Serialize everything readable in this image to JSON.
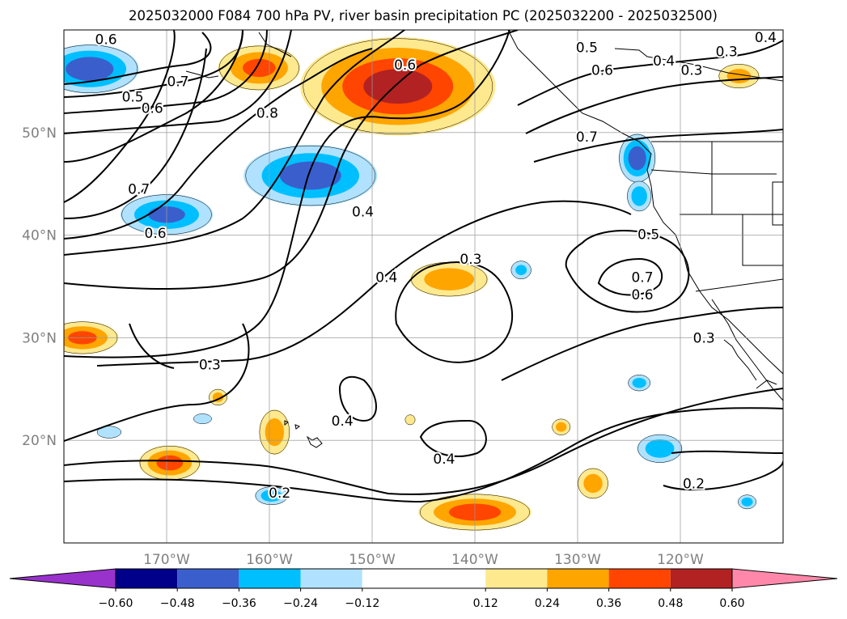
{
  "chart_data": {
    "type": "contour",
    "title": "2025032000 F084 700 hPa PV, river basin precipitation PC (2025032200 - 2025032500)",
    "xlabel": "",
    "ylabel": "",
    "xlim": [
      -180,
      -110
    ],
    "ylim": [
      10,
      60
    ],
    "grid": true,
    "lon_ticks": [
      -170,
      -160,
      -150,
      -140,
      -130,
      -120
    ],
    "lon_tick_labels": [
      "170°W",
      "160°W",
      "150°W",
      "140°W",
      "130°W",
      "120°W"
    ],
    "lat_ticks": [
      20,
      30,
      40,
      50
    ],
    "lat_tick_labels": [
      "20°N",
      "30°N",
      "40°N",
      "50°N"
    ],
    "colorbar": {
      "orientation": "horizontal",
      "extend": "both",
      "ticks": [
        -0.6,
        -0.48,
        -0.36,
        -0.24,
        -0.12,
        0.12,
        0.24,
        0.36,
        0.48,
        0.6
      ],
      "tick_labels": [
        "−0.60",
        "−0.48",
        "−0.36",
        "−0.24",
        "−0.12",
        "0.12",
        "0.24",
        "0.36",
        "0.48",
        "0.60"
      ],
      "colors": [
        "#9932cc",
        "#00008b",
        "#3a5fcd",
        "#00bfff",
        "#b0e2ff",
        "#ffffff",
        "#ffe98f",
        "#ffa500",
        "#ff4500",
        "#b22222",
        "#ff88aa"
      ]
    },
    "contour_levels": [
      0.2,
      0.3,
      0.4,
      0.5,
      0.6,
      0.7,
      0.8
    ],
    "contour_labels": [
      {
        "text": "0.6",
        "lon": -175.9,
        "lat": 59.1
      },
      {
        "text": "0.6",
        "lon": -146.8,
        "lat": 56.6
      },
      {
        "text": "0.5",
        "lon": -173.3,
        "lat": 53.5
      },
      {
        "text": "0.6",
        "lon": -171.4,
        "lat": 52.4
      },
      {
        "text": "0.7",
        "lon": -168.9,
        "lat": 55.0
      },
      {
        "text": "0.8",
        "lon": -160.2,
        "lat": 51.9
      },
      {
        "text": "0.7",
        "lon": -172.7,
        "lat": 44.5
      },
      {
        "text": "0.6",
        "lon": -171.1,
        "lat": 40.2
      },
      {
        "text": "0.4",
        "lon": -150.9,
        "lat": 42.3
      },
      {
        "text": "0.3",
        "lon": -140.4,
        "lat": 37.7
      },
      {
        "text": "0.4",
        "lon": -148.6,
        "lat": 35.9
      },
      {
        "text": "0.5",
        "lon": -129.1,
        "lat": 58.3
      },
      {
        "text": "0.6",
        "lon": -127.6,
        "lat": 56.1
      },
      {
        "text": "0.4",
        "lon": -121.6,
        "lat": 57.0
      },
      {
        "text": "0.3",
        "lon": -118.9,
        "lat": 56.1
      },
      {
        "text": "0.3",
        "lon": -115.5,
        "lat": 57.9
      },
      {
        "text": "0.4",
        "lon": -111.7,
        "lat": 59.3
      },
      {
        "text": "0.7",
        "lon": -129.1,
        "lat": 49.6
      },
      {
        "text": "0.5",
        "lon": -123.1,
        "lat": 40.1
      },
      {
        "text": "0.7",
        "lon": -123.7,
        "lat": 35.9
      },
      {
        "text": "0.6",
        "lon": -123.7,
        "lat": 34.2
      },
      {
        "text": "0.3",
        "lon": -117.7,
        "lat": 30.0
      },
      {
        "text": "0.3",
        "lon": -165.8,
        "lat": 27.4
      },
      {
        "text": "0.4",
        "lon": -152.9,
        "lat": 21.9
      },
      {
        "text": "0.4",
        "lon": -143.0,
        "lat": 18.2
      },
      {
        "text": "0.2",
        "lon": -159.0,
        "lat": 14.9
      },
      {
        "text": "0.2",
        "lon": -118.7,
        "lat": 15.8
      }
    ],
    "shaded_regions": [
      {
        "lon": -177.5,
        "lat": 56.2,
        "rx": 4.8,
        "ry": 2.4,
        "value": -0.42
      },
      {
        "lon": -161.0,
        "lat": 56.3,
        "rx": 4.0,
        "ry": 2.2,
        "value": 0.36
      },
      {
        "lon": -147.5,
        "lat": 54.5,
        "rx": 9.5,
        "ry": 4.8,
        "value": 0.5
      },
      {
        "lon": -156.0,
        "lat": 45.8,
        "rx": 6.5,
        "ry": 3.0,
        "value": -0.4
      },
      {
        "lon": -170.0,
        "lat": 42.0,
        "rx": 4.5,
        "ry": 2.0,
        "value": -0.36
      },
      {
        "lon": -178.2,
        "lat": 30.0,
        "rx": 3.5,
        "ry": 1.6,
        "value": 0.36
      },
      {
        "lon": -142.5,
        "lat": 35.7,
        "rx": 3.8,
        "ry": 1.7,
        "value": 0.3
      },
      {
        "lon": -135.5,
        "lat": 36.6,
        "rx": 1.0,
        "ry": 0.9,
        "value": -0.24
      },
      {
        "lon": -124.2,
        "lat": 47.5,
        "rx": 1.8,
        "ry": 2.4,
        "value": -0.42
      },
      {
        "lon": -124.0,
        "lat": 43.8,
        "rx": 1.2,
        "ry": 1.5,
        "value": -0.3
      },
      {
        "lon": -114.3,
        "lat": 55.5,
        "rx": 2.0,
        "ry": 1.2,
        "value": 0.26
      },
      {
        "lon": -165.0,
        "lat": 24.2,
        "rx": 0.9,
        "ry": 0.8,
        "value": 0.26
      },
      {
        "lon": -159.5,
        "lat": 20.8,
        "rx": 1.5,
        "ry": 2.2,
        "value": 0.28
      },
      {
        "lon": -169.7,
        "lat": 17.8,
        "rx": 3.0,
        "ry": 1.7,
        "value": 0.38
      },
      {
        "lon": -159.8,
        "lat": 14.6,
        "rx": 1.6,
        "ry": 0.9,
        "value": -0.3
      },
      {
        "lon": -175.6,
        "lat": 20.8,
        "rx": 1.2,
        "ry": 0.6,
        "value": -0.16
      },
      {
        "lon": -166.5,
        "lat": 22.1,
        "rx": 0.9,
        "ry": 0.5,
        "value": -0.16
      },
      {
        "lon": -140.0,
        "lat": 13.0,
        "rx": 5.5,
        "ry": 1.8,
        "value": 0.4
      },
      {
        "lon": -146.3,
        "lat": 22.0,
        "rx": 0.5,
        "ry": 0.5,
        "value": 0.2
      },
      {
        "lon": -131.6,
        "lat": 21.3,
        "rx": 0.9,
        "ry": 0.8,
        "value": 0.26
      },
      {
        "lon": -128.5,
        "lat": 15.8,
        "rx": 1.5,
        "ry": 1.5,
        "value": 0.28
      },
      {
        "lon": -124.0,
        "lat": 25.6,
        "rx": 1.1,
        "ry": 0.8,
        "value": -0.28
      },
      {
        "lon": -122.0,
        "lat": 19.2,
        "rx": 2.2,
        "ry": 1.4,
        "value": -0.3
      },
      {
        "lon": -113.5,
        "lat": 14.0,
        "rx": 0.9,
        "ry": 0.7,
        "value": -0.28
      }
    ]
  }
}
